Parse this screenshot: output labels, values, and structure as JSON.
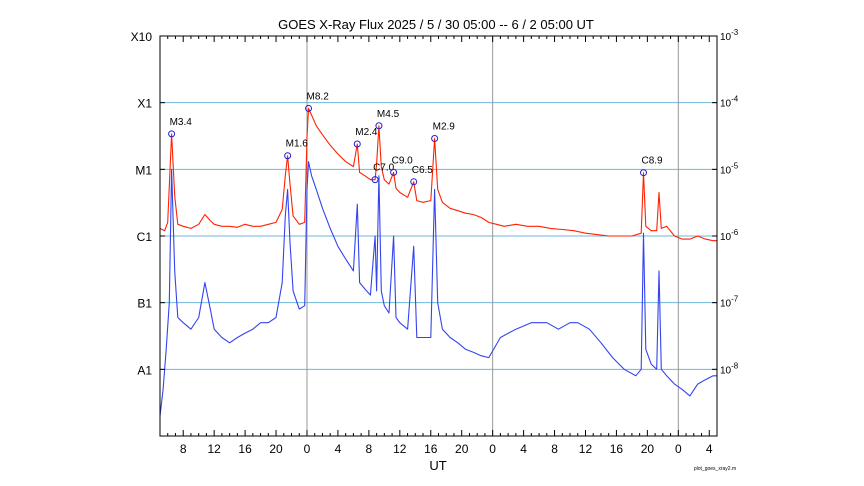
{
  "chart_data": {
    "type": "line",
    "title": "GOES X-Ray Flux   2025 /  5 / 30   05:00 --  6 /  2   05:00   UT",
    "xlabel": "UT",
    "credit": "plot_goes_xray2.m",
    "y_scale": "log",
    "ylim": [
      1e-09,
      0.001
    ],
    "xlim_hours": [
      0,
      72
    ],
    "grid": true,
    "left_ticks": [
      {
        "label": "A1",
        "value": 1e-08
      },
      {
        "label": "B1",
        "value": 1e-07
      },
      {
        "label": "C1",
        "value": 1e-06
      },
      {
        "label": "M1",
        "value": 1e-05
      },
      {
        "label": "X1",
        "value": 0.0001
      },
      {
        "label": "X10",
        "value": 0.001
      }
    ],
    "right_ticks": [
      {
        "base": "10",
        "exp": "-8",
        "value": 1e-08
      },
      {
        "base": "10",
        "exp": "-7",
        "value": 1e-07
      },
      {
        "base": "10",
        "exp": "-6",
        "value": 1e-06
      },
      {
        "base": "10",
        "exp": "-5",
        "value": 1e-05
      },
      {
        "base": "10",
        "exp": "-4",
        "value": 0.0001
      },
      {
        "base": "10",
        "exp": "-3",
        "value": 0.001
      }
    ],
    "x_ticks": [
      {
        "label": "8",
        "hour": 3
      },
      {
        "label": "12",
        "hour": 7
      },
      {
        "label": "16",
        "hour": 11
      },
      {
        "label": "20",
        "hour": 15
      },
      {
        "label": "0",
        "hour": 19
      },
      {
        "label": "4",
        "hour": 23
      },
      {
        "label": "8",
        "hour": 27
      },
      {
        "label": "12",
        "hour": 31
      },
      {
        "label": "16",
        "hour": 35
      },
      {
        "label": "20",
        "hour": 39
      },
      {
        "label": "0",
        "hour": 43
      },
      {
        "label": "4",
        "hour": 47
      },
      {
        "label": "8",
        "hour": 51
      },
      {
        "label": "12",
        "hour": 55
      },
      {
        "label": "16",
        "hour": 59
      },
      {
        "label": "20",
        "hour": 63
      },
      {
        "label": "0",
        "hour": 67
      },
      {
        "label": "4",
        "hour": 71
      }
    ],
    "day_boundaries_hours": [
      19,
      43,
      67
    ],
    "flares": [
      {
        "label": "M3.4",
        "hour": 1.5,
        "flux": 3.4e-05
      },
      {
        "label": "M1.6",
        "hour": 16.5,
        "flux": 1.6e-05
      },
      {
        "label": "M8.2",
        "hour": 19.2,
        "flux": 8.2e-05
      },
      {
        "label": "M2.4",
        "hour": 25.5,
        "flux": 2.4e-05
      },
      {
        "label": "C7.0",
        "hour": 27.8,
        "flux": 7e-06
      },
      {
        "label": "M4.5",
        "hour": 28.3,
        "flux": 4.5e-05
      },
      {
        "label": "C9.0",
        "hour": 30.2,
        "flux": 9e-06
      },
      {
        "label": "C6.5",
        "hour": 32.8,
        "flux": 6.5e-06
      },
      {
        "label": "M2.9",
        "hour": 35.5,
        "flux": 2.9e-05
      },
      {
        "label": "C8.9",
        "hour": 62.5,
        "flux": 8.9e-06
      }
    ],
    "series": [
      {
        "channel": "long",
        "color": "#ff2200",
        "points": [
          [
            0,
            1.3e-06
          ],
          [
            0.6,
            1.2e-06
          ],
          [
            1.0,
            1.6e-06
          ],
          [
            1.5,
            3.4e-05
          ],
          [
            1.9,
            4e-06
          ],
          [
            2.3,
            1.5e-06
          ],
          [
            3,
            1.4e-06
          ],
          [
            4,
            1.3e-06
          ],
          [
            5,
            1.5e-06
          ],
          [
            5.8,
            2.1e-06
          ],
          [
            6.5,
            1.7e-06
          ],
          [
            7,
            1.5e-06
          ],
          [
            8,
            1.4e-06
          ],
          [
            9,
            1.4e-06
          ],
          [
            10,
            1.35e-06
          ],
          [
            11,
            1.5e-06
          ],
          [
            12,
            1.4e-06
          ],
          [
            13,
            1.4e-06
          ],
          [
            14,
            1.5e-06
          ],
          [
            15,
            1.6e-06
          ],
          [
            15.8,
            2.5e-06
          ],
          [
            16.2,
            8e-06
          ],
          [
            16.5,
            1.6e-05
          ],
          [
            16.8,
            6e-06
          ],
          [
            17.2,
            2e-06
          ],
          [
            18,
            1.5e-06
          ],
          [
            18.7,
            1.6e-06
          ],
          [
            19.0,
            3e-05
          ],
          [
            19.2,
            8.2e-05
          ],
          [
            19.6,
            6.5e-05
          ],
          [
            20.2,
            4.5e-05
          ],
          [
            21,
            3.3e-05
          ],
          [
            22,
            2.3e-05
          ],
          [
            23,
            1.7e-05
          ],
          [
            24,
            1.3e-05
          ],
          [
            25,
            1.1e-05
          ],
          [
            25.5,
            2.4e-05
          ],
          [
            25.8,
            9e-06
          ],
          [
            26.5,
            8e-06
          ],
          [
            27.2,
            7e-06
          ],
          [
            27.8,
            7e-06
          ],
          [
            28.0,
            1.2e-05
          ],
          [
            28.3,
            4.5e-05
          ],
          [
            28.6,
            1.1e-05
          ],
          [
            29,
            7e-06
          ],
          [
            29.6,
            6e-06
          ],
          [
            30.2,
            9e-06
          ],
          [
            30.5,
            5.2e-06
          ],
          [
            31,
            4.5e-06
          ],
          [
            32,
            3.8e-06
          ],
          [
            32.8,
            6.5e-06
          ],
          [
            33.2,
            3.4e-06
          ],
          [
            34,
            3.2e-06
          ],
          [
            35,
            3.4e-06
          ],
          [
            35.5,
            2.9e-05
          ],
          [
            35.9,
            5e-06
          ],
          [
            36.5,
            3.2e-06
          ],
          [
            37.5,
            2.6e-06
          ],
          [
            38.5,
            2.4e-06
          ],
          [
            39.5,
            2.2e-06
          ],
          [
            40.5,
            2.1e-06
          ],
          [
            41.5,
            1.9e-06
          ],
          [
            42.5,
            1.6e-06
          ],
          [
            43.5,
            1.5e-06
          ],
          [
            44.5,
            1.4e-06
          ],
          [
            46,
            1.5e-06
          ],
          [
            47.5,
            1.4e-06
          ],
          [
            49,
            1.4e-06
          ],
          [
            50.5,
            1.3e-06
          ],
          [
            52,
            1.25e-06
          ],
          [
            53.5,
            1.2e-06
          ],
          [
            55,
            1.1e-06
          ],
          [
            56.5,
            1.05e-06
          ],
          [
            58,
            1e-06
          ],
          [
            59.5,
            1e-06
          ],
          [
            61,
            1e-06
          ],
          [
            62.2,
            1.1e-06
          ],
          [
            62.5,
            8.9e-06
          ],
          [
            62.8,
            1.4e-06
          ],
          [
            63.5,
            1.2e-06
          ],
          [
            64.2,
            1.2e-06
          ],
          [
            64.5,
            4.5e-06
          ],
          [
            64.8,
            1.3e-06
          ],
          [
            65.5,
            1.4e-06
          ],
          [
            66.5,
            1e-06
          ],
          [
            67.5,
            9e-07
          ],
          [
            68.5,
            9e-07
          ],
          [
            69.5,
            1e-06
          ],
          [
            70.5,
            9e-07
          ],
          [
            71.5,
            8.5e-07
          ],
          [
            72,
            8.5e-07
          ]
        ]
      },
      {
        "channel": "short",
        "color": "#3344ee",
        "points": [
          [
            0,
            2e-09
          ],
          [
            0.4,
            5e-09
          ],
          [
            0.8,
            2e-08
          ],
          [
            1.2,
            1e-07
          ],
          [
            1.5,
            1e-05
          ],
          [
            1.9,
            3e-07
          ],
          [
            2.3,
            6e-08
          ],
          [
            3,
            5e-08
          ],
          [
            4,
            4e-08
          ],
          [
            5,
            6e-08
          ],
          [
            5.8,
            2e-07
          ],
          [
            6.5,
            8e-08
          ],
          [
            7,
            4e-08
          ],
          [
            8,
            3e-08
          ],
          [
            9,
            2.5e-08
          ],
          [
            10,
            3e-08
          ],
          [
            11,
            3.5e-08
          ],
          [
            12,
            4e-08
          ],
          [
            13,
            5e-08
          ],
          [
            14,
            5e-08
          ],
          [
            15,
            6e-08
          ],
          [
            15.8,
            2e-07
          ],
          [
            16.2,
            2e-06
          ],
          [
            16.5,
            5e-06
          ],
          [
            16.8,
            8e-07
          ],
          [
            17.2,
            1.5e-07
          ],
          [
            18,
            8e-08
          ],
          [
            18.7,
            9e-08
          ],
          [
            19.0,
            5e-06
          ],
          [
            19.2,
            1.3e-05
          ],
          [
            19.6,
            8e-06
          ],
          [
            20.2,
            5e-06
          ],
          [
            21,
            2.6e-06
          ],
          [
            22,
            1.3e-06
          ],
          [
            23,
            7e-07
          ],
          [
            24,
            4.5e-07
          ],
          [
            25,
            3e-07
          ],
          [
            25.5,
            3e-06
          ],
          [
            25.8,
            2e-07
          ],
          [
            26.5,
            1.6e-07
          ],
          [
            27.2,
            1.3e-07
          ],
          [
            27.8,
            1e-06
          ],
          [
            28.0,
            1.5e-07
          ],
          [
            28.3,
            8e-06
          ],
          [
            28.6,
            1.5e-07
          ],
          [
            29,
            9e-08
          ],
          [
            29.6,
            7e-08
          ],
          [
            30.2,
            1e-06
          ],
          [
            30.5,
            6e-08
          ],
          [
            31,
            5e-08
          ],
          [
            32,
            4e-08
          ],
          [
            32.8,
            7e-07
          ],
          [
            33.2,
            3e-08
          ],
          [
            34,
            3e-08
          ],
          [
            35,
            3e-08
          ],
          [
            35.5,
            5e-06
          ],
          [
            35.9,
            1e-07
          ],
          [
            36.5,
            4e-08
          ],
          [
            37.5,
            3e-08
          ],
          [
            38.5,
            2.5e-08
          ],
          [
            39.5,
            2e-08
          ],
          [
            40.5,
            1.8e-08
          ],
          [
            41.5,
            1.6e-08
          ],
          [
            42.5,
            1.5e-08
          ],
          [
            44,
            3e-08
          ],
          [
            46,
            4e-08
          ],
          [
            48,
            5e-08
          ],
          [
            50,
            5e-08
          ],
          [
            51.5,
            4e-08
          ],
          [
            53,
            5e-08
          ],
          [
            54,
            5e-08
          ],
          [
            55.5,
            4e-08
          ],
          [
            57,
            2.5e-08
          ],
          [
            58.5,
            1.5e-08
          ],
          [
            60,
            1e-08
          ],
          [
            61.5,
            8e-09
          ],
          [
            62.2,
            1e-08
          ],
          [
            62.5,
            1.1e-06
          ],
          [
            62.8,
            2e-08
          ],
          [
            63.5,
            1.2e-08
          ],
          [
            64.2,
            1e-08
          ],
          [
            64.5,
            3e-07
          ],
          [
            64.8,
            1e-08
          ],
          [
            65.5,
            8e-09
          ],
          [
            66.5,
            6e-09
          ],
          [
            67.5,
            5e-09
          ],
          [
            68.5,
            4e-09
          ],
          [
            69.5,
            6e-09
          ],
          [
            70.5,
            7e-09
          ],
          [
            71.5,
            8e-09
          ],
          [
            72,
            8e-09
          ]
        ]
      }
    ]
  }
}
